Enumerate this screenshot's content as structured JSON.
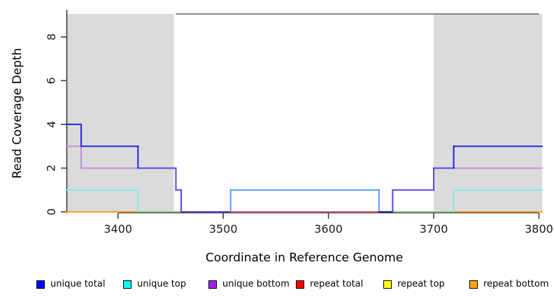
{
  "figure": {
    "background": "#FFFFFF"
  },
  "chart_data": {
    "type": "line",
    "subtype": "step-coverage-plot",
    "title": "",
    "xlabel": "Coordinate in Reference Genome",
    "ylabel": "Read Coverage Depth",
    "xlim": [
      3351,
      3803
    ],
    "ylim": [
      0,
      9.05
    ],
    "xticks": [
      3400,
      3500,
      3600,
      3700,
      3800
    ],
    "yticks": [
      0,
      2,
      4,
      6,
      8
    ],
    "grid": "off",
    "legend_position": "bottom",
    "shaded_regions": [
      {
        "x1": 3351,
        "x2": 3453,
        "color": "#DBDBDB",
        "meaning": "repeat-flank-region"
      },
      {
        "x1": 3700,
        "x2": 3803,
        "color": "#DBDBDB",
        "meaning": "repeat-flank-region"
      }
    ],
    "top_rule": {
      "x1": 3455,
      "x2": 3800,
      "y": 9.05,
      "color": "#787878"
    },
    "series": [
      {
        "name": "unique total",
        "color": "#0000FF",
        "steps": [
          [
            3351,
            4
          ],
          [
            3365,
            3
          ],
          [
            3419,
            2
          ],
          [
            3455,
            1
          ],
          [
            3460,
            0
          ],
          [
            3507,
            1
          ],
          [
            3648,
            0
          ],
          [
            3661,
            1
          ],
          [
            3700,
            2
          ],
          [
            3719,
            3
          ],
          [
            3803,
            3
          ]
        ]
      },
      {
        "name": "unique top",
        "color": "#00FFFF",
        "steps": [
          [
            3351,
            1
          ],
          [
            3419,
            0
          ],
          [
            3719,
            1
          ],
          [
            3803,
            1
          ]
        ]
      },
      {
        "name": "unique bottom",
        "color": "#A020F0",
        "steps": [
          [
            3351,
            3
          ],
          [
            3365,
            2
          ],
          [
            3455,
            1
          ],
          [
            3460,
            0
          ],
          [
            3661,
            1
          ],
          [
            3700,
            2
          ],
          [
            3803,
            2
          ]
        ]
      },
      {
        "name": "repeat total",
        "color": "#FF0000",
        "steps": [
          [
            3351,
            0
          ],
          [
            3803,
            0
          ]
        ]
      },
      {
        "name": "repeat top",
        "color": "#FFFF00",
        "steps": [
          [
            3351,
            0
          ],
          [
            3803,
            0
          ]
        ]
      },
      {
        "name": "repeat bottom",
        "color": "#FFA500",
        "steps": [
          [
            3351,
            0
          ],
          [
            3803,
            0
          ]
        ]
      }
    ],
    "render_segments": [
      {
        "x1": 3351,
        "y1": 0,
        "x2": 3419,
        "y2": 0,
        "color": "#FF9E1A"
      },
      {
        "x1": 3419,
        "y1": 0,
        "x2": 3460,
        "y2": 0,
        "color": "#8CCC8C"
      },
      {
        "x1": 3507,
        "y1": 0,
        "x2": 3648,
        "y2": 0,
        "color": "#DD6377"
      },
      {
        "x1": 3661,
        "y1": 0,
        "x2": 3719,
        "y2": 0,
        "color": "#8CCC8C"
      },
      {
        "x1": 3719,
        "y1": 0,
        "x2": 3803,
        "y2": 0,
        "color": "#FF9E1A"
      },
      {
        "x1": 3351,
        "y1": 1,
        "x2": 3419,
        "y2": 1,
        "color": "#7DE9E9"
      },
      {
        "x1": 3419,
        "y1": 1,
        "x2": 3419,
        "y2": 0,
        "color": "#7DE9E9"
      },
      {
        "x1": 3719,
        "y1": 0,
        "x2": 3719,
        "y2": 1,
        "color": "#7DE9E9"
      },
      {
        "x1": 3719,
        "y1": 1,
        "x2": 3803,
        "y2": 1,
        "color": "#7DE9E9"
      },
      {
        "x1": 3351,
        "y1": 3,
        "x2": 3365,
        "y2": 3,
        "color": "#BC8FD8"
      },
      {
        "x1": 3365,
        "y1": 3,
        "x2": 3365,
        "y2": 2,
        "color": "#BC8FD8"
      },
      {
        "x1": 3365,
        "y1": 2,
        "x2": 3419,
        "y2": 2,
        "color": "#BC8FD8"
      },
      {
        "x1": 3719,
        "y1": 2,
        "x2": 3803,
        "y2": 2,
        "color": "#BC8FD8"
      },
      {
        "x1": 3351,
        "y1": 4,
        "x2": 3365,
        "y2": 4,
        "color": "#2222DD"
      },
      {
        "x1": 3365,
        "y1": 4,
        "x2": 3365,
        "y2": 3,
        "color": "#2222DD"
      },
      {
        "x1": 3365,
        "y1": 3,
        "x2": 3419,
        "y2": 3,
        "color": "#2222DD"
      },
      {
        "x1": 3419,
        "y1": 3,
        "x2": 3419,
        "y2": 2,
        "color": "#2222DD"
      },
      {
        "x1": 3419,
        "y1": 2,
        "x2": 3455,
        "y2": 2,
        "color": "#5C41E8"
      },
      {
        "x1": 3455,
        "y1": 2,
        "x2": 3455,
        "y2": 1,
        "color": "#5C41E8"
      },
      {
        "x1": 3455,
        "y1": 1,
        "x2": 3460,
        "y2": 1,
        "color": "#5C41E8"
      },
      {
        "x1": 3460,
        "y1": 1,
        "x2": 3460,
        "y2": 0,
        "color": "#5C41E8"
      },
      {
        "x1": 3460,
        "y1": 0,
        "x2": 3507,
        "y2": 0,
        "color": "#5C41E8"
      },
      {
        "x1": 3507,
        "y1": 0,
        "x2": 3507,
        "y2": 1,
        "color": "#5599FF"
      },
      {
        "x1": 3507,
        "y1": 1,
        "x2": 3648,
        "y2": 1,
        "color": "#5599FF"
      },
      {
        "x1": 3648,
        "y1": 1,
        "x2": 3648,
        "y2": 0,
        "color": "#5599FF"
      },
      {
        "x1": 3648,
        "y1": 0,
        "x2": 3661,
        "y2": 0,
        "color": "#2222DD"
      },
      {
        "x1": 3661,
        "y1": 0,
        "x2": 3661,
        "y2": 1,
        "color": "#5C41E8"
      },
      {
        "x1": 3661,
        "y1": 1,
        "x2": 3700,
        "y2": 1,
        "color": "#5C41E8"
      },
      {
        "x1": 3700,
        "y1": 1,
        "x2": 3700,
        "y2": 2,
        "color": "#5C41E8"
      },
      {
        "x1": 3700,
        "y1": 2,
        "x2": 3719,
        "y2": 2,
        "color": "#5C41E8"
      },
      {
        "x1": 3719,
        "y1": 2,
        "x2": 3719,
        "y2": 3,
        "color": "#2222DD"
      },
      {
        "x1": 3719,
        "y1": 3,
        "x2": 3803,
        "y2": 3,
        "color": "#2222DD"
      }
    ]
  },
  "axes_style": {
    "spine_color": "#3C3C3C",
    "tick_color": "#3C3C3C",
    "tick_label_color": "#1A1A1A"
  },
  "legend": {
    "items": [
      {
        "label": "unique total",
        "color": "#0000FF"
      },
      {
        "label": "unique top",
        "color": "#00FFFF"
      },
      {
        "label": "unique bottom",
        "color": "#A020F0"
      },
      {
        "label": "repeat total",
        "color": "#FF0000"
      },
      {
        "label": "repeat top",
        "color": "#FFFF00"
      },
      {
        "label": "repeat bottom",
        "color": "#FFA500"
      }
    ]
  }
}
